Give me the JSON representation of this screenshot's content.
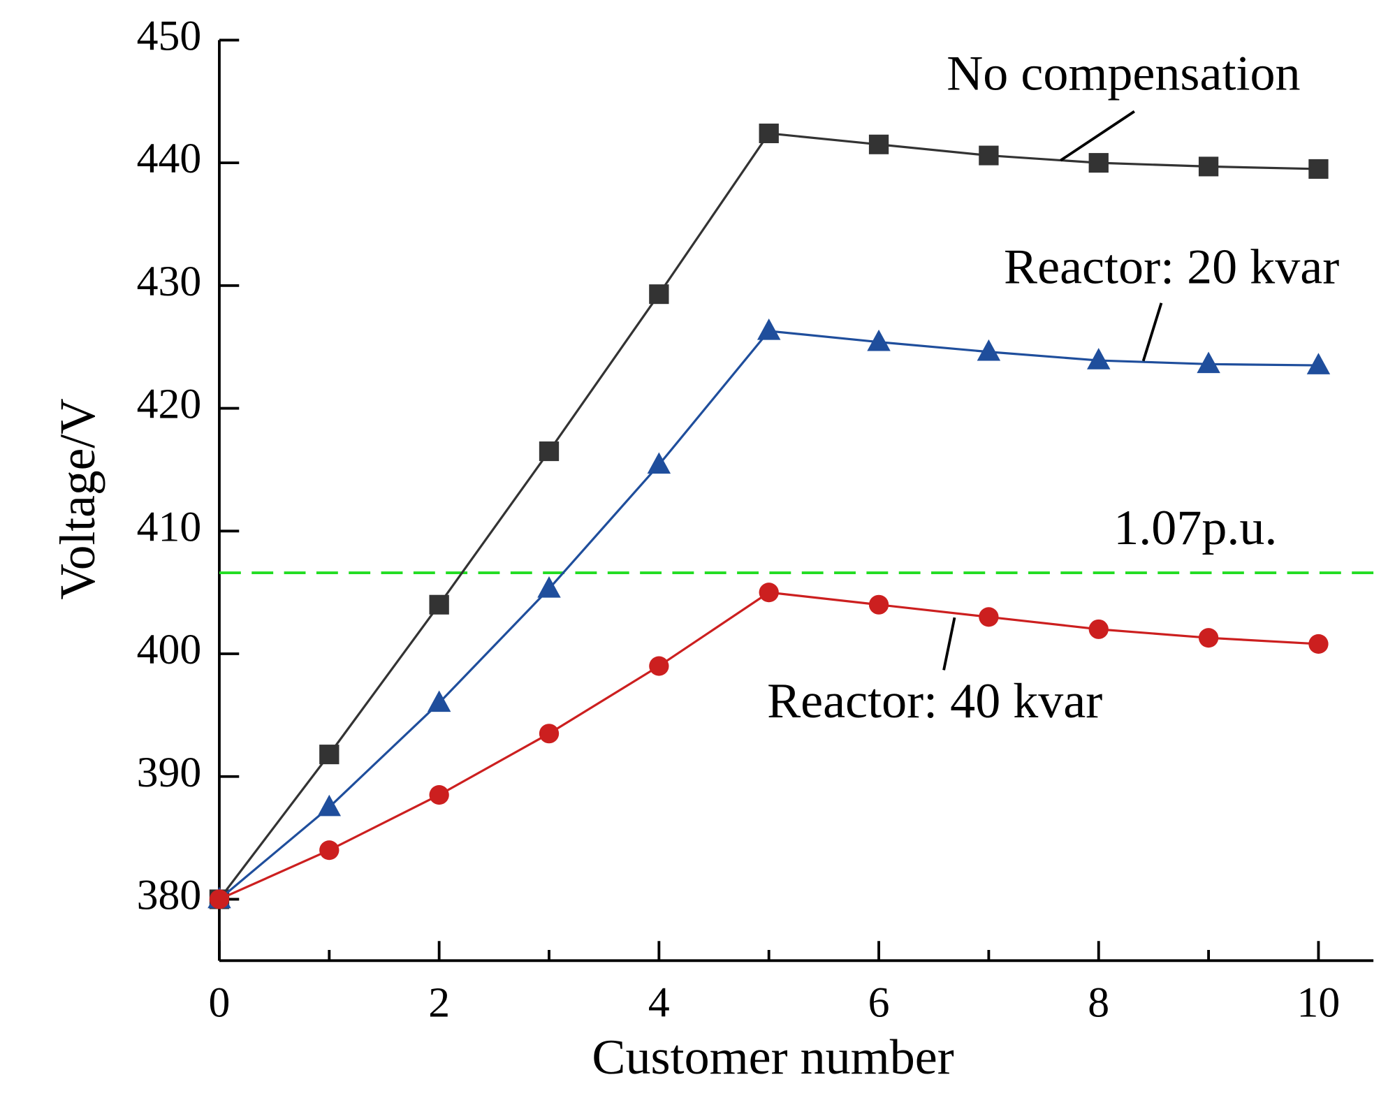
{
  "chart_data": {
    "type": "line",
    "x_label": "Customer number",
    "y_label": "Voltage/V",
    "x": [
      0,
      1,
      2,
      3,
      4,
      5,
      6,
      7,
      8,
      9,
      10
    ],
    "series": [
      {
        "name": "No compensation",
        "color": "#333333",
        "marker": "square",
        "values": [
          380,
          391.8,
          404,
          416.5,
          429.3,
          442.4,
          441.5,
          440.6,
          440,
          439.7,
          439.5
        ]
      },
      {
        "name": "Reactor: 20 kvar",
        "color": "#1f4e9c",
        "marker": "triangle",
        "values": [
          380,
          387.5,
          396,
          405.3,
          415.4,
          426.3,
          425.4,
          424.6,
          423.9,
          423.6,
          423.5
        ]
      },
      {
        "name": "Reactor: 40 kvar",
        "color": "#cc1f1f",
        "marker": "circle",
        "values": [
          380,
          384,
          388.5,
          393.5,
          399,
          405,
          404,
          403,
          402,
          401.3,
          400.8
        ]
      }
    ],
    "reference_line": {
      "value": 406.6,
      "label": "1.07p.u.",
      "color": "#22dd22"
    },
    "xlim": [
      0,
      10.5
    ],
    "ylim": [
      375,
      450
    ],
    "xticks": [
      0,
      2,
      4,
      6,
      8,
      10
    ],
    "xminor_ticks": [
      1,
      3,
      5,
      7,
      9
    ],
    "yticks": [
      380,
      390,
      400,
      410,
      420,
      430,
      440,
      450
    ]
  }
}
